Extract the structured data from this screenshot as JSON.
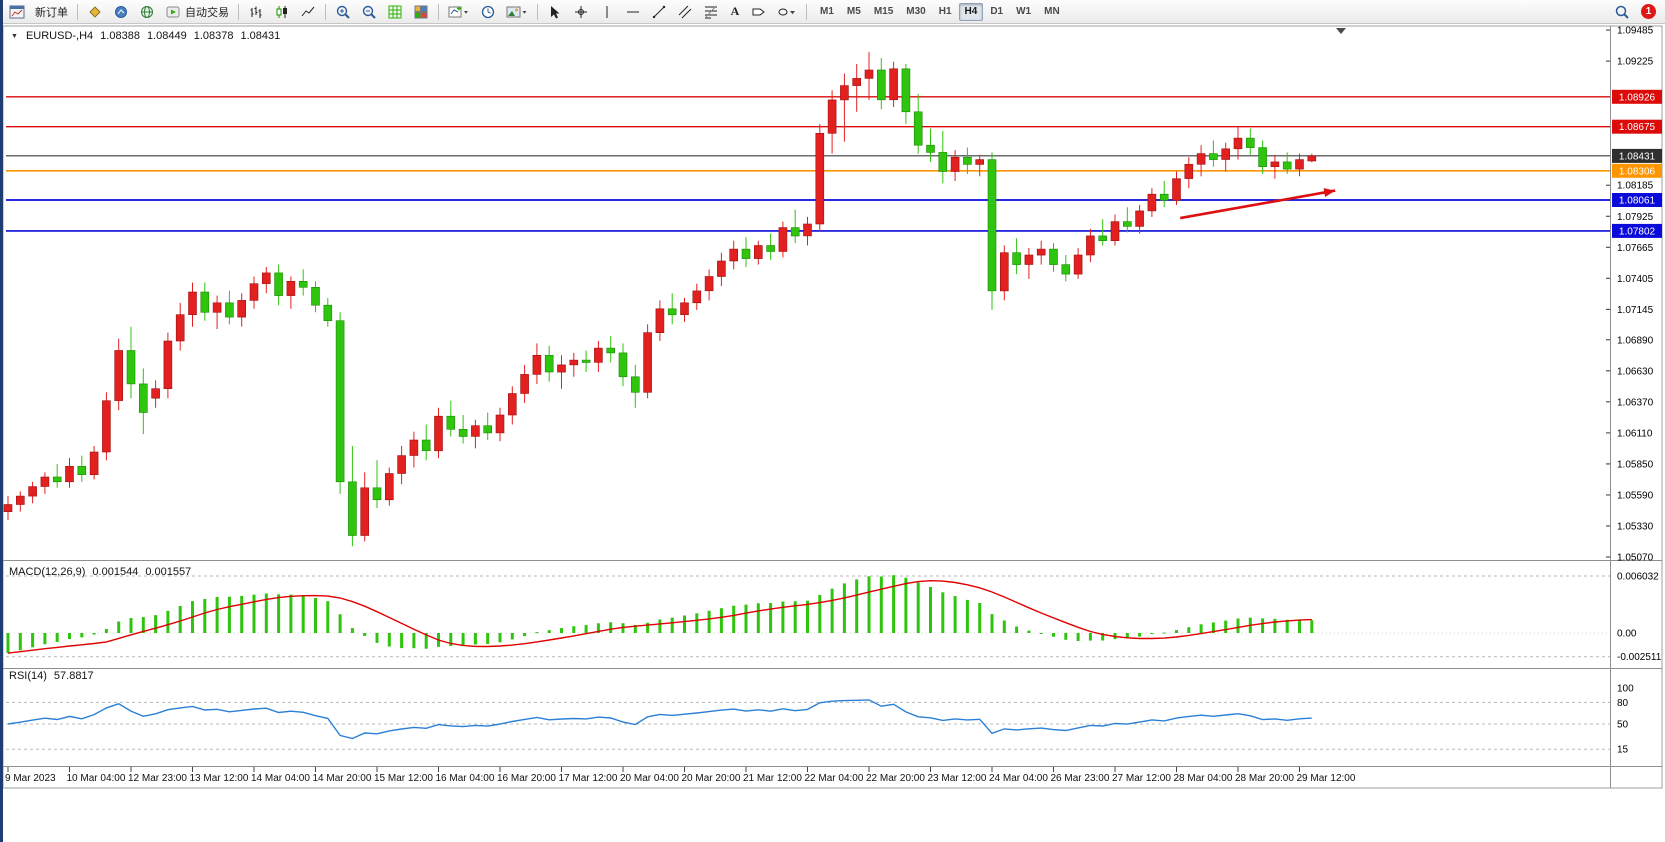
{
  "window": {
    "badge_count": "1"
  },
  "toolbar": {
    "new_order_label": "新订单",
    "auto_trading_label": "自动交易",
    "text_tool_label": "A",
    "timeframes": [
      {
        "label": "M1"
      },
      {
        "label": "M5"
      },
      {
        "label": "M15"
      },
      {
        "label": "M30"
      },
      {
        "label": "H1"
      },
      {
        "label": "H4",
        "active": true
      },
      {
        "label": "D1"
      },
      {
        "label": "W1"
      },
      {
        "label": "MN"
      }
    ]
  },
  "chart_header": {
    "symbol_period": "EURUSD-,H4",
    "open": "1.08388",
    "high": "1.08449",
    "low": "1.08378",
    "close": "1.08431"
  },
  "indicators": {
    "macd": {
      "label": "MACD(12,26,9)",
      "value1": "0.001544",
      "value2": "0.001557",
      "axis_labels": [
        {
          "text": "0.006032",
          "value": 0.006032
        },
        {
          "text": "0.00",
          "value": 0
        },
        {
          "text": "-0.002511",
          "value": -0.002511
        }
      ]
    },
    "rsi": {
      "label": "RSI(14)",
      "value": "57.8817",
      "levels": [
        {
          "text": "100",
          "value": 100
        },
        {
          "text": "80",
          "value": 80
        },
        {
          "text": "50",
          "value": 50
        },
        {
          "text": "15",
          "value": 15
        }
      ]
    }
  },
  "chart_data": {
    "type": "candlestick",
    "symbol": "EURUSD",
    "timeframe": "H4",
    "price_range": {
      "min": 1.05045,
      "max": 1.09519
    },
    "colors": {
      "bull": "#e32020",
      "bull_border": "#9e0f0f",
      "bear": "#2fc40e",
      "bear_border": "#1b8a05",
      "macd_histogram": "#2fc40e",
      "macd_signal": "#e00000",
      "rsi_line": "#2a80d6",
      "arrow": "#dd1111"
    },
    "price_axis_ticks": [
      {
        "text": "1.09485",
        "value": 1.09485
      },
      {
        "text": "1.09225",
        "value": 1.09225
      },
      {
        "text": "1.08185",
        "value": 1.08185
      },
      {
        "text": "1.07925",
        "value": 1.07925
      },
      {
        "text": "1.07665",
        "value": 1.07665
      },
      {
        "text": "1.07405",
        "value": 1.07405
      },
      {
        "text": "1.07145",
        "value": 1.07145
      },
      {
        "text": "1.06890",
        "value": 1.0689
      },
      {
        "text": "1.06630",
        "value": 1.0663
      },
      {
        "text": "1.06370",
        "value": 1.0637
      },
      {
        "text": "1.06110",
        "value": 1.0611
      },
      {
        "text": "1.05850",
        "value": 1.0585
      },
      {
        "text": "1.05590",
        "value": 1.0559
      },
      {
        "text": "1.05330",
        "value": 1.0533
      },
      {
        "text": "1.05070",
        "value": 1.0507
      }
    ],
    "hlines": [
      {
        "name": "resistance-line-1",
        "price": 1.08926,
        "color": "#dd0a0a",
        "width": 1.4,
        "tag": "1.08926",
        "tag_bg": "#dd0a0a"
      },
      {
        "name": "resistance-line-2",
        "price": 1.08675,
        "color": "#dd0a0a",
        "width": 1.4,
        "tag": "1.08675",
        "tag_bg": "#dd0a0a"
      },
      {
        "name": "current-price-line",
        "price": 1.08431,
        "color": "#3c3c3c",
        "width": 1.1,
        "tag": "1.08431",
        "tag_bg": "#2f2f2f"
      },
      {
        "name": "pivot-line-orange",
        "price": 1.08306,
        "color": "#ff9500",
        "width": 1.6,
        "tag": "1.08306",
        "tag_bg": "#ff9500"
      },
      {
        "name": "support-line-1",
        "price": 1.08061,
        "color": "#0a0adb",
        "width": 1.7,
        "tag": "1.08061",
        "tag_bg": "#0a0adb"
      },
      {
        "name": "support-line-2",
        "price": 1.07802,
        "color": "#0a0adb",
        "width": 1.7,
        "tag": "1.07802",
        "tag_bg": "#0a0adb"
      }
    ],
    "arrow": {
      "i1": 95.3,
      "p1": 1.0791,
      "i2": 107.9,
      "p2": 1.0814
    },
    "time_labels": [
      {
        "text": "9 Mar 2023",
        "index": 0
      },
      {
        "text": "10 Mar 04:00",
        "index": 5
      },
      {
        "text": "12 Mar 23:00",
        "index": 10
      },
      {
        "text": "13 Mar 12:00",
        "index": 15
      },
      {
        "text": "14 Mar 04:00",
        "index": 20
      },
      {
        "text": "14 Mar 20:00",
        "index": 25
      },
      {
        "text": "15 Mar 12:00",
        "index": 30
      },
      {
        "text": "16 Mar 04:00",
        "index": 35
      },
      {
        "text": "16 Mar 20:00",
        "index": 40
      },
      {
        "text": "17 Mar 12:00",
        "index": 45
      },
      {
        "text": "20 Mar 04:00",
        "index": 50
      },
      {
        "text": "20 Mar 20:00",
        "index": 55
      },
      {
        "text": "21 Mar 12:00",
        "index": 60
      },
      {
        "text": "22 Mar 04:00",
        "index": 65
      },
      {
        "text": "22 Mar 20:00",
        "index": 70
      },
      {
        "text": "23 Mar 12:00",
        "index": 75
      },
      {
        "text": "24 Mar 04:00",
        "index": 80
      },
      {
        "text": "26 Mar 23:00",
        "index": 85
      },
      {
        "text": "27 Mar 12:00",
        "index": 90
      },
      {
        "text": "28 Mar 04:00",
        "index": 95
      },
      {
        "text": "28 Mar 20:00",
        "index": 100
      },
      {
        "text": "29 Mar 12:00",
        "index": 105
      }
    ],
    "candles": [
      [
        1.0545,
        1.0558,
        1.0538,
        1.0551
      ],
      [
        1.0551,
        1.0562,
        1.0545,
        1.0558
      ],
      [
        1.0558,
        1.057,
        1.0552,
        1.0566
      ],
      [
        1.0566,
        1.0578,
        1.056,
        1.0574
      ],
      [
        1.0574,
        1.0585,
        1.0565,
        1.057
      ],
      [
        1.057,
        1.059,
        1.0565,
        1.0583
      ],
      [
        1.0583,
        1.0592,
        1.057,
        1.0576
      ],
      [
        1.0576,
        1.06,
        1.0572,
        1.0595
      ],
      [
        1.0595,
        1.0645,
        1.0588,
        1.0638
      ],
      [
        1.0638,
        1.069,
        1.063,
        1.068
      ],
      [
        1.068,
        1.07,
        1.064,
        1.0652
      ],
      [
        1.0652,
        1.0665,
        1.061,
        1.0628
      ],
      [
        1.064,
        1.0655,
        1.0632,
        1.0648
      ],
      [
        1.0648,
        1.0695,
        1.064,
        1.0688
      ],
      [
        1.0688,
        1.072,
        1.068,
        1.071
      ],
      [
        1.071,
        1.0737,
        1.07,
        1.0729
      ],
      [
        1.0729,
        1.0737,
        1.0705,
        1.0712
      ],
      [
        1.0712,
        1.0726,
        1.0698,
        1.072
      ],
      [
        1.072,
        1.073,
        1.0702,
        1.0708
      ],
      [
        1.0708,
        1.0728,
        1.07,
        1.0722
      ],
      [
        1.0722,
        1.0742,
        1.0715,
        1.0736
      ],
      [
        1.0736,
        1.075,
        1.0728,
        1.0745
      ],
      [
        1.0745,
        1.0752,
        1.0718,
        1.0726
      ],
      [
        1.0726,
        1.0742,
        1.0715,
        1.0738
      ],
      [
        1.0738,
        1.0748,
        1.0726,
        1.0733
      ],
      [
        1.0733,
        1.0738,
        1.0712,
        1.0718
      ],
      [
        1.0718,
        1.0724,
        1.07,
        1.0705
      ],
      [
        1.0705,
        1.0712,
        1.056,
        1.057
      ],
      [
        1.057,
        1.06,
        1.0516,
        1.0525
      ],
      [
        1.0525,
        1.0578,
        1.052,
        1.0565
      ],
      [
        1.0565,
        1.0588,
        1.0548,
        1.0555
      ],
      [
        1.0555,
        1.0582,
        1.055,
        1.0577
      ],
      [
        1.0577,
        1.06,
        1.0568,
        1.0592
      ],
      [
        1.0592,
        1.0612,
        1.0582,
        1.0605
      ],
      [
        1.0605,
        1.0618,
        1.0588,
        1.0596
      ],
      [
        1.0596,
        1.0632,
        1.059,
        1.0625
      ],
      [
        1.0625,
        1.0638,
        1.0608,
        1.0614
      ],
      [
        1.0614,
        1.0626,
        1.0602,
        1.0608
      ],
      [
        1.0608,
        1.0622,
        1.0598,
        1.0617
      ],
      [
        1.0617,
        1.0628,
        1.0605,
        1.0611
      ],
      [
        1.0611,
        1.0632,
        1.0604,
        1.0626
      ],
      [
        1.0626,
        1.065,
        1.0618,
        1.0644
      ],
      [
        1.0644,
        1.0668,
        1.0636,
        1.066
      ],
      [
        1.066,
        1.0686,
        1.0652,
        1.0676
      ],
      [
        1.0676,
        1.0684,
        1.0654,
        1.0662
      ],
      [
        1.0662,
        1.0676,
        1.0648,
        1.0668
      ],
      [
        1.0668,
        1.0678,
        1.0658,
        1.0672
      ],
      [
        1.0672,
        1.068,
        1.0662,
        1.067
      ],
      [
        1.067,
        1.0688,
        1.0662,
        1.0682
      ],
      [
        1.0682,
        1.0692,
        1.067,
        1.0678
      ],
      [
        1.0678,
        1.0686,
        1.065,
        1.0658
      ],
      [
        1.0658,
        1.0668,
        1.0632,
        1.0645
      ],
      [
        1.0645,
        1.0702,
        1.064,
        1.0695
      ],
      [
        1.0695,
        1.0722,
        1.0688,
        1.0715
      ],
      [
        1.0715,
        1.0728,
        1.0702,
        1.071
      ],
      [
        1.071,
        1.0724,
        1.0704,
        1.072
      ],
      [
        1.072,
        1.0736,
        1.0714,
        1.073
      ],
      [
        1.073,
        1.0748,
        1.0722,
        1.0742
      ],
      [
        1.0742,
        1.0762,
        1.0734,
        1.0755
      ],
      [
        1.0755,
        1.0772,
        1.0748,
        1.0765
      ],
      [
        1.0765,
        1.0775,
        1.075,
        1.0757
      ],
      [
        1.0757,
        1.0772,
        1.0752,
        1.0768
      ],
      [
        1.0768,
        1.0778,
        1.0756,
        1.0763
      ],
      [
        1.0763,
        1.0788,
        1.0758,
        1.0783
      ],
      [
        1.0783,
        1.0798,
        1.077,
        1.0776
      ],
      [
        1.0776,
        1.0792,
        1.0768,
        1.0786
      ],
      [
        1.0786,
        1.087,
        1.078,
        1.0862
      ],
      [
        1.0862,
        1.0898,
        1.0845,
        1.089
      ],
      [
        1.089,
        1.0912,
        1.0855,
        1.0902
      ],
      [
        1.0902,
        1.092,
        1.088,
        1.0908
      ],
      [
        1.0908,
        1.093,
        1.089,
        1.0915
      ],
      [
        1.0915,
        1.0925,
        1.0882,
        1.089
      ],
      [
        1.089,
        1.0922,
        1.0884,
        1.0916
      ],
      [
        1.0916,
        1.092,
        1.087,
        1.088
      ],
      [
        1.088,
        1.0895,
        1.0845,
        1.0852
      ],
      [
        1.0852,
        1.0866,
        1.0838,
        1.0846
      ],
      [
        1.0846,
        1.0864,
        1.082,
        1.083
      ],
      [
        1.083,
        1.0848,
        1.0822,
        1.0842
      ],
      [
        1.0842,
        1.085,
        1.0828,
        1.0836
      ],
      [
        1.0836,
        1.0844,
        1.0826,
        1.084
      ],
      [
        1.084,
        1.0846,
        1.0714,
        1.073
      ],
      [
        1.073,
        1.0768,
        1.0722,
        1.0762
      ],
      [
        1.0762,
        1.0774,
        1.0744,
        1.0752
      ],
      [
        1.0752,
        1.0766,
        1.074,
        1.076
      ],
      [
        1.076,
        1.0772,
        1.0752,
        1.0765
      ],
      [
        1.0765,
        1.077,
        1.0746,
        1.0752
      ],
      [
        1.0752,
        1.076,
        1.0738,
        1.0744
      ],
      [
        1.0744,
        1.0766,
        1.074,
        1.076
      ],
      [
        1.076,
        1.0782,
        1.0754,
        1.0776
      ],
      [
        1.0776,
        1.079,
        1.0768,
        1.0772
      ],
      [
        1.0772,
        1.0794,
        1.0768,
        1.0788
      ],
      [
        1.0788,
        1.08,
        1.0779,
        1.0784
      ],
      [
        1.0784,
        1.0802,
        1.0778,
        1.0797
      ],
      [
        1.0797,
        1.0816,
        1.0792,
        1.0811
      ],
      [
        1.0811,
        1.0822,
        1.08,
        1.0806
      ],
      [
        1.0806,
        1.083,
        1.0802,
        1.0824
      ],
      [
        1.0824,
        1.0842,
        1.0816,
        1.0836
      ],
      [
        1.0836,
        1.0852,
        1.0826,
        1.0845
      ],
      [
        1.0845,
        1.0856,
        1.0834,
        1.084
      ],
      [
        1.084,
        1.0854,
        1.083,
        1.0849
      ],
      [
        1.0849,
        1.0867,
        1.084,
        1.0858
      ],
      [
        1.0858,
        1.0866,
        1.0844,
        1.085
      ],
      [
        1.085,
        1.0856,
        1.0828,
        1.0834
      ],
      [
        1.0834,
        1.0844,
        1.0824,
        1.0838
      ],
      [
        1.0838,
        1.0846,
        1.0828,
        1.0832
      ],
      [
        1.0832,
        1.0845,
        1.0826,
        1.084
      ],
      [
        1.08388,
        1.08449,
        1.08378,
        1.08431
      ]
    ]
  }
}
